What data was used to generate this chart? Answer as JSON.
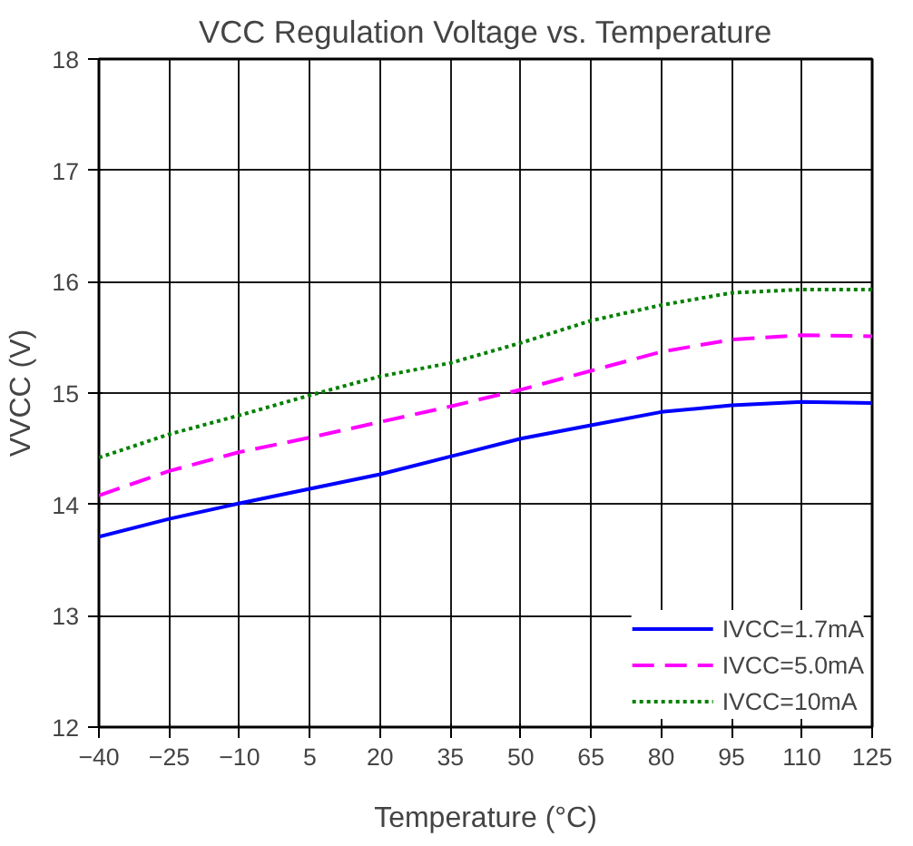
{
  "chart_data": {
    "type": "line",
    "title": "VCC Regulation Voltage vs. Temperature",
    "xlabel": "Temperature (°C)",
    "ylabel": "VVCC (V)",
    "x": [
      -40,
      -25,
      -10,
      5,
      20,
      35,
      50,
      65,
      80,
      95,
      110,
      125
    ],
    "series": [
      {
        "name": "IVCC=1.7mA",
        "color": "#0000ff",
        "line_style": "solid",
        "values": [
          13.71,
          13.87,
          14.01,
          14.14,
          14.27,
          14.43,
          14.59,
          14.71,
          14.83,
          14.89,
          14.92,
          14.91
        ]
      },
      {
        "name": "IVCC=5.0mA",
        "color": "#ff00ff",
        "line_style": "dashed",
        "values": [
          14.08,
          14.3,
          14.47,
          14.6,
          14.74,
          14.88,
          15.03,
          15.2,
          15.37,
          15.48,
          15.52,
          15.51
        ]
      },
      {
        "name": "IVCC=10mA",
        "color": "#008000",
        "line_style": "dotted",
        "values": [
          14.42,
          14.63,
          14.8,
          14.98,
          15.15,
          15.27,
          15.45,
          15.65,
          15.79,
          15.9,
          15.93,
          15.93
        ]
      }
    ],
    "xlim": [
      -40,
      125
    ],
    "xticks": [
      -40,
      -25,
      -10,
      5,
      20,
      35,
      50,
      65,
      80,
      95,
      110,
      125
    ],
    "ylim": [
      12,
      18
    ],
    "yticks": [
      12,
      13,
      14,
      15,
      16,
      17,
      18
    ],
    "grid": true,
    "legend": "bottom right",
    "marker": "none"
  }
}
